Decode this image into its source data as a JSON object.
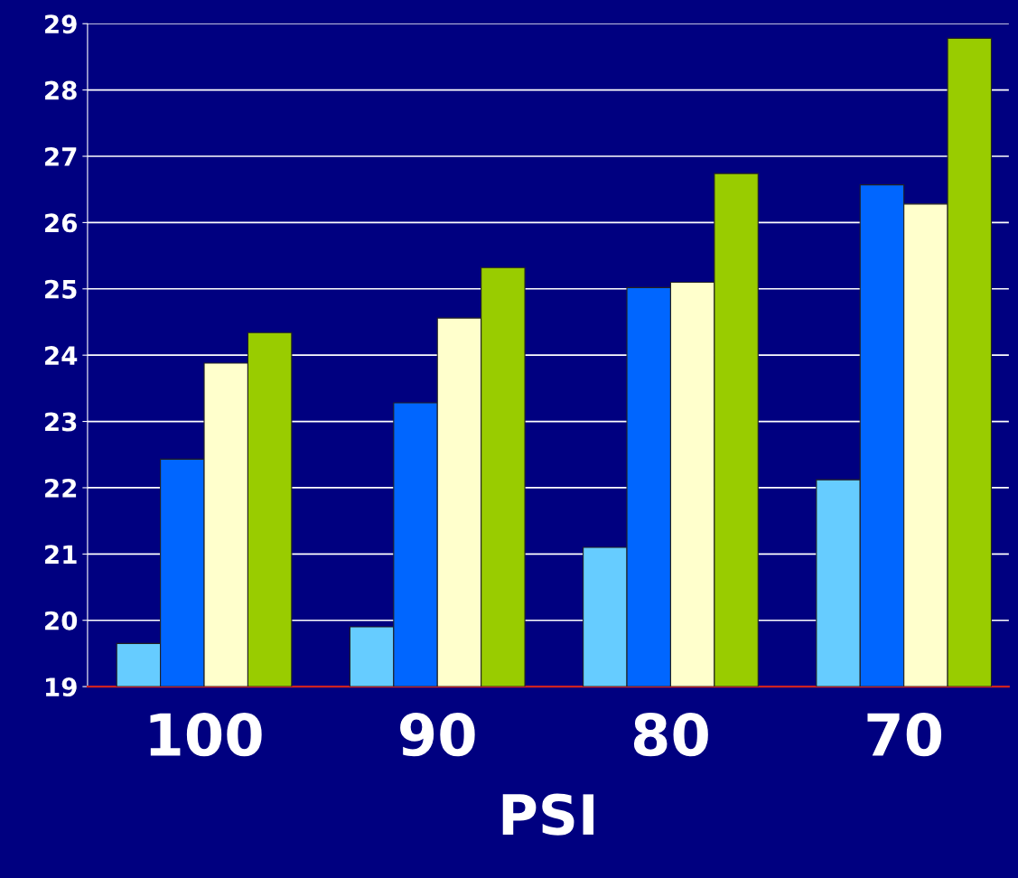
{
  "chart_data": {
    "type": "bar",
    "xlabel": "PSI",
    "categories": [
      "100",
      "90",
      "80",
      "70"
    ],
    "series": [
      {
        "color": "#66ccff",
        "values": [
          19.65,
          19.9,
          21.1,
          22.12
        ]
      },
      {
        "color": "#0066ff",
        "values": [
          22.43,
          23.28,
          25.02,
          26.57
        ]
      },
      {
        "color": "#ffffcc",
        "values": [
          23.88,
          24.56,
          25.1,
          26.28
        ]
      },
      {
        "color": "#99cc00",
        "values": [
          24.34,
          25.32,
          26.74,
          28.78
        ]
      }
    ],
    "ylim": [
      19,
      29
    ],
    "yticks": [
      19,
      20,
      21,
      22,
      23,
      24,
      25,
      26,
      27,
      28,
      29
    ],
    "grid": "y"
  }
}
